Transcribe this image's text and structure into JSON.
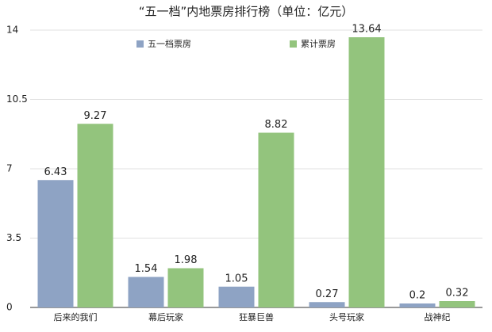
{
  "chart_data": {
    "type": "bar",
    "title": "“五一档”内地票房排行榜（单位：亿元）",
    "categories": [
      "后来的我们",
      "幕后玩家",
      "狂暴巨兽",
      "头号玩家",
      "战神纪"
    ],
    "series": [
      {
        "name": "五一档票房",
        "color": "#8ea3c4",
        "values": [
          6.43,
          1.54,
          1.05,
          0.27,
          0.2
        ]
      },
      {
        "name": "累计票房",
        "color": "#93c47d",
        "values": [
          9.27,
          1.98,
          8.82,
          13.64,
          0.32
        ]
      }
    ],
    "ylim": [
      0,
      14
    ],
    "yticks": [
      0,
      3.5,
      7,
      10.5,
      14
    ],
    "grid": true
  }
}
